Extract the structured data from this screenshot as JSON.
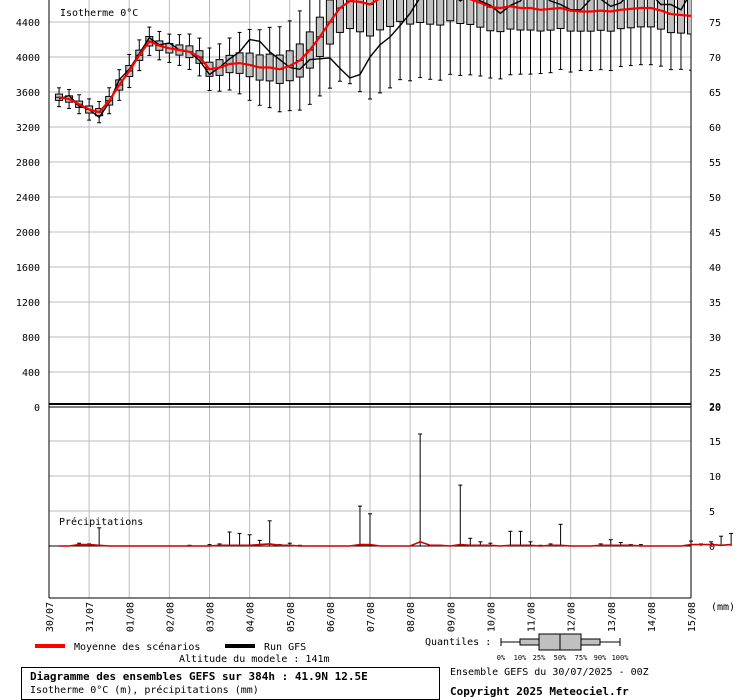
{
  "chart_data": {
    "type": "box-line",
    "x_ticks": [
      "30/07",
      "31/07",
      "01/08",
      "02/08",
      "03/08",
      "04/08",
      "05/08",
      "06/08",
      "07/08",
      "08/08",
      "09/08",
      "10/08",
      "11/08",
      "12/08",
      "13/08",
      "14/08",
      "15/08"
    ],
    "x_range_hours": [
      0,
      384
    ],
    "step_hours": 6,
    "top_panel": {
      "title": "Isotherme 0°C",
      "y_left_ticks": [
        0,
        400,
        800,
        1200,
        1600,
        2000,
        2400,
        2800,
        3200,
        3600,
        4000,
        4400
      ],
      "y_right_ticks": [
        20,
        25,
        30,
        35,
        40,
        45,
        50,
        55,
        60,
        65,
        70,
        75
      ],
      "ylim": [
        0,
        4600
      ],
      "grid": true,
      "ensemble_mean": [
        3540,
        3520,
        3460,
        3400,
        3370,
        3500,
        3680,
        3840,
        4020,
        4180,
        4130,
        4100,
        4080,
        4060,
        4000,
        3860,
        3880,
        3920,
        3930,
        3910,
        3880,
        3880,
        3860,
        3900,
        3960,
        4080,
        4230,
        4400,
        4560,
        4640,
        4630,
        4600,
        4670,
        4700,
        4740,
        4700,
        4710,
        4690,
        4680,
        4720,
        4680,
        4660,
        4620,
        4570,
        4560,
        4580,
        4560,
        4560,
        4540,
        4550,
        4560,
        4530,
        4520,
        4520,
        4530,
        4520,
        4540,
        4550,
        4560,
        4560,
        4530,
        4490,
        4480,
        4470,
        4440,
        4450,
        4460,
        4440
      ],
      "run_gfs": [
        3520,
        3560,
        3440,
        3400,
        3310,
        3480,
        3740,
        3860,
        4040,
        4220,
        4140,
        4160,
        4080,
        4060,
        3960,
        3800,
        3880,
        3980,
        4060,
        4200,
        4180,
        4060,
        3970,
        3880,
        3860,
        3970,
        3980,
        3990,
        3870,
        3760,
        3800,
        4000,
        4140,
        4230,
        4360,
        4500,
        4680,
        4760,
        4880,
        4740,
        4640,
        4720,
        4640,
        4590,
        4500,
        4590,
        4640,
        4820,
        4720,
        4640,
        4600,
        4540,
        4540,
        4660,
        4660,
        4580,
        4620,
        4750,
        4790,
        4720,
        4600,
        4600,
        4540,
        4740,
        4700,
        4560,
        4660,
        4620
      ],
      "spread": [
        80,
        80,
        80,
        90,
        90,
        110,
        130,
        140,
        130,
        120,
        120,
        120,
        130,
        150,
        160,
        180,
        200,
        220,
        260,
        300,
        320,
        340,
        360,
        380,
        420,
        460,
        500,
        560,
        620,
        700,
        760,
        800,
        800,
        780,
        740,
        720,
        700,
        700,
        700,
        680,
        660,
        640,
        620,
        600,
        600,
        580,
        560,
        560,
        540,
        540,
        520,
        520,
        500,
        500,
        500,
        500,
        480,
        480,
        480,
        480,
        470,
        470,
        460,
        460,
        450,
        450,
        440,
        440
      ]
    },
    "bottom_panel": {
      "title": "Précipitations",
      "unit": "(mm)",
      "y_right_ticks": [
        0,
        5,
        10,
        15,
        20
      ],
      "ylim": [
        0,
        20
      ],
      "precip_whisker_max": [
        0,
        0,
        0.4,
        0.3,
        2.6,
        0,
        0,
        0,
        0,
        0,
        0,
        0,
        0,
        0.1,
        0,
        0.2,
        0.3,
        2.0,
        1.8,
        1.6,
        0.8,
        3.6,
        0.2,
        0.4,
        0.1,
        0,
        0,
        0,
        0,
        0,
        5.7,
        4.6,
        0,
        0,
        0,
        0,
        16,
        0,
        0,
        0,
        8.7,
        1.1,
        0.6,
        0.4,
        0,
        2.1,
        2.1,
        0.6,
        0.1,
        0.3,
        3.1,
        0,
        0,
        0,
        0.3,
        0.9,
        0.5,
        0.2,
        0.2,
        0,
        0,
        0,
        0,
        0.7,
        0.3,
        0.6,
        1.4,
        1.8
      ],
      "precip_mean": [
        0,
        0,
        0.2,
        0.2,
        0.1,
        0,
        0,
        0,
        0,
        0,
        0,
        0,
        0,
        0,
        0,
        0,
        0.1,
        0.1,
        0.1,
        0.1,
        0.2,
        0.3,
        0.1,
        0.1,
        0,
        0,
        0,
        0,
        0,
        0,
        0.2,
        0.2,
        0,
        0,
        0,
        0,
        0.6,
        0.1,
        0.1,
        0,
        0.2,
        0.1,
        0.1,
        0.1,
        0,
        0.1,
        0.1,
        0.1,
        0,
        0.1,
        0.1,
        0,
        0,
        0,
        0.1,
        0.1,
        0.1,
        0.1,
        0,
        0,
        0,
        0,
        0,
        0.2,
        0.2,
        0.2,
        0.1,
        0.2
      ]
    },
    "legend": [
      {
        "label": "Moyenne des scénarios",
        "color": "#ff0000"
      },
      {
        "label": "Run GFS",
        "color": "#000000"
      }
    ]
  },
  "labels": {
    "altitude": "Altitude du modele : 141m",
    "quantiles_label": "Quantiles :",
    "quantile_ticks": [
      "0%",
      "10%",
      "25%",
      "50%",
      "75%",
      "90%",
      "100%"
    ],
    "ensemble_run": "Ensemble GEFS du 30/07/2025 - 00Z",
    "copyright": "Copyright 2025 Meteociel.fr",
    "info_title": "Diagramme des ensembles GEFS sur 384h : 41.9N 12.5E",
    "info_subtitle": "Isotherme 0°C (m), précipitations (mm)"
  }
}
